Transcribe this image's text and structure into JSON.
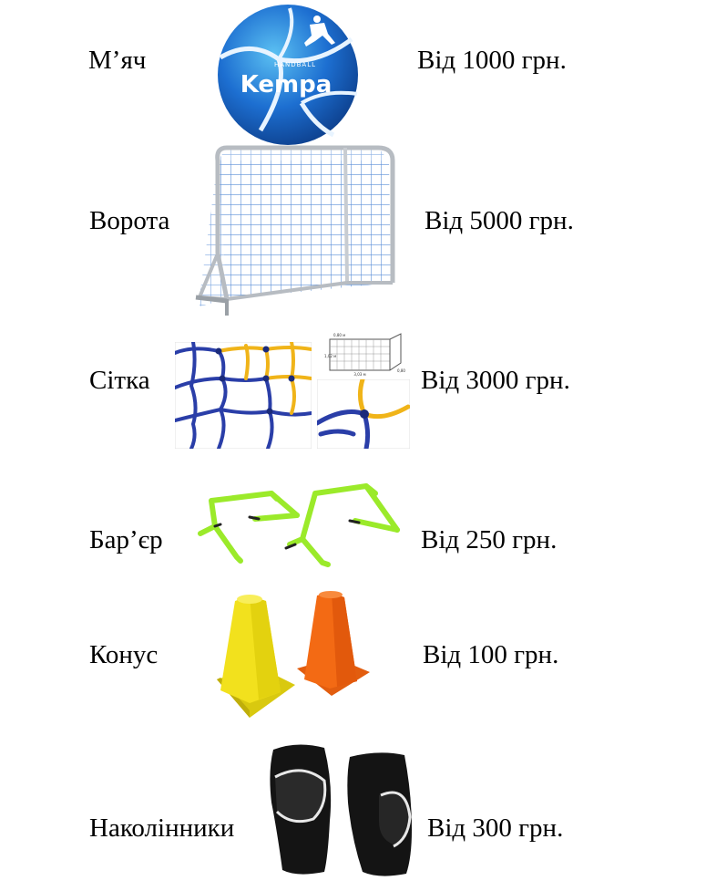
{
  "items": [
    {
      "label": "М’яч",
      "price": "Від 1000 грн.",
      "icon": "handball-icon",
      "brand": "Kempa",
      "brand_small": "HANDBALL"
    },
    {
      "label": "Ворота",
      "price": "Від 5000 грн.",
      "icon": "goal-icon"
    },
    {
      "label": "Сітка",
      "price": "Від 3000 грн.",
      "icon": "net-icon",
      "diagram_text": [
        "3,03 м",
        "1,02 м",
        "0,80 м",
        "0,80"
      ]
    },
    {
      "label": "Бар’єр",
      "price": "Від 250 грн.",
      "icon": "hurdle-icon"
    },
    {
      "label": "Конус",
      "price": "Від 100 грн.",
      "icon": "cone-icon"
    },
    {
      "label": "Наколінники",
      "price": "Від 300 грн.",
      "icon": "knee-pads-icon"
    }
  ],
  "colors": {
    "ball_blue": "#1d6fd1",
    "ball_light": "#52b6ec",
    "net_blue": "#2a3ea8",
    "net_yellow": "#f0b419",
    "hurdle_green": "#9bea2a",
    "cone_yellow": "#f2e11d",
    "cone_orange": "#f36a14"
  }
}
